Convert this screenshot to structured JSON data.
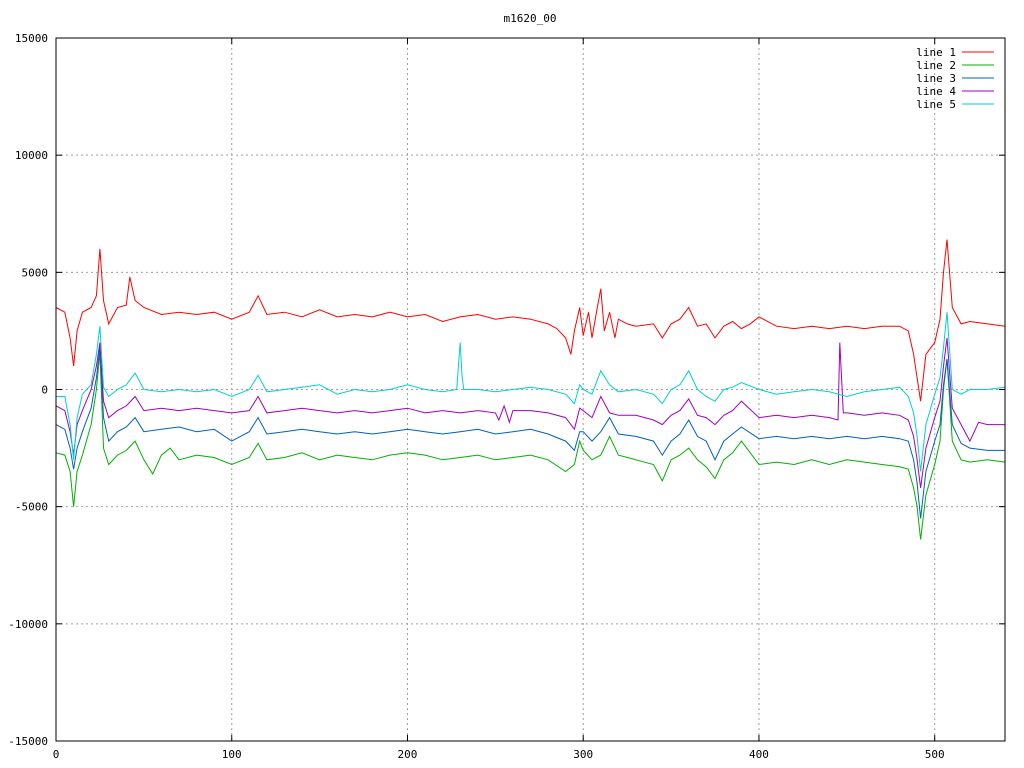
{
  "chart_data": {
    "type": "line",
    "title": "m1620_00",
    "xlabel": "",
    "ylabel": "",
    "xlim": [
      0,
      540
    ],
    "ylim": [
      -15000,
      15000
    ],
    "xticks": [
      0,
      100,
      200,
      300,
      400,
      500
    ],
    "yticks": [
      -15000,
      -10000,
      -5000,
      0,
      5000,
      10000,
      15000
    ],
    "grid": true,
    "legend_position": "top-right",
    "series": [
      {
        "name": "line 1",
        "color": "#ff0000",
        "x": [
          0,
          5,
          8,
          10,
          12,
          15,
          20,
          23,
          25,
          27,
          30,
          35,
          40,
          42,
          45,
          50,
          60,
          70,
          80,
          90,
          100,
          110,
          115,
          120,
          130,
          140,
          150,
          160,
          170,
          180,
          190,
          200,
          210,
          220,
          230,
          240,
          250,
          260,
          270,
          280,
          285,
          290,
          293,
          295,
          298,
          300,
          303,
          305,
          308,
          310,
          312,
          315,
          318,
          320,
          325,
          330,
          340,
          345,
          350,
          355,
          360,
          365,
          370,
          375,
          380,
          385,
          390,
          395,
          400,
          410,
          420,
          430,
          440,
          450,
          460,
          470,
          480,
          485,
          488,
          490,
          492,
          495,
          500,
          503,
          505,
          507,
          510,
          515,
          520,
          530,
          540
        ],
        "values": [
          3500,
          3300,
          2200,
          1000,
          2500,
          3300,
          3500,
          4000,
          6000,
          3800,
          2800,
          3500,
          3600,
          4800,
          3800,
          3500,
          3200,
          3300,
          3200,
          3300,
          3000,
          3300,
          4000,
          3200,
          3300,
          3100,
          3400,
          3100,
          3200,
          3100,
          3300,
          3100,
          3200,
          2900,
          3100,
          3200,
          3000,
          3100,
          3000,
          2800,
          2600,
          2200,
          1500,
          2500,
          3500,
          2300,
          3300,
          2200,
          3500,
          4300,
          2500,
          3300,
          2200,
          3000,
          2800,
          2700,
          2800,
          2200,
          2800,
          3000,
          3500,
          2700,
          2800,
          2200,
          2700,
          2900,
          2600,
          2800,
          3100,
          2700,
          2600,
          2700,
          2600,
          2700,
          2600,
          2700,
          2700,
          2500,
          1500,
          500,
          -500,
          1500,
          2000,
          3000,
          5000,
          6400,
          3500,
          2800,
          2900,
          2800,
          2700
        ]
      },
      {
        "name": "line 2",
        "color": "#00b000",
        "x": [
          0,
          5,
          8,
          10,
          12,
          15,
          20,
          23,
          25,
          27,
          30,
          35,
          40,
          45,
          50,
          55,
          60,
          65,
          70,
          80,
          90,
          100,
          110,
          115,
          120,
          130,
          140,
          150,
          160,
          170,
          180,
          190,
          200,
          210,
          220,
          230,
          240,
          250,
          260,
          270,
          280,
          290,
          295,
          298,
          300,
          305,
          310,
          315,
          320,
          330,
          340,
          345,
          350,
          355,
          360,
          365,
          370,
          375,
          380,
          385,
          390,
          400,
          410,
          420,
          430,
          440,
          450,
          460,
          470,
          480,
          485,
          488,
          490,
          492,
          495,
          500,
          503,
          505,
          507,
          510,
          515,
          520,
          530,
          540
        ],
        "values": [
          -2700,
          -2800,
          -3500,
          -5000,
          -3500,
          -2800,
          -1500,
          0,
          1600,
          -2500,
          -3200,
          -2800,
          -2600,
          -2200,
          -3000,
          -3600,
          -2800,
          -2500,
          -3000,
          -2800,
          -2900,
          -3200,
          -2900,
          -2300,
          -3000,
          -2900,
          -2700,
          -3000,
          -2800,
          -2900,
          -3000,
          -2800,
          -2700,
          -2800,
          -3000,
          -2900,
          -2800,
          -3000,
          -2900,
          -2800,
          -3000,
          -3500,
          -3200,
          -2200,
          -2600,
          -3000,
          -2800,
          -2000,
          -2800,
          -3000,
          -3200,
          -3900,
          -3000,
          -2800,
          -2500,
          -3000,
          -3300,
          -3800,
          -3000,
          -2700,
          -2200,
          -3200,
          -3100,
          -3200,
          -3000,
          -3200,
          -3000,
          -3100,
          -3200,
          -3300,
          -3400,
          -4200,
          -5000,
          -6400,
          -4500,
          -3200,
          -2200,
          0,
          1300,
          -2200,
          -3000,
          -3100,
          -3000,
          -3100
        ]
      },
      {
        "name": "line 3",
        "color": "#0060c0",
        "x": [
          0,
          5,
          8,
          10,
          12,
          15,
          20,
          23,
          25,
          27,
          30,
          35,
          40,
          45,
          50,
          60,
          70,
          80,
          90,
          100,
          110,
          115,
          120,
          130,
          140,
          150,
          160,
          170,
          180,
          190,
          200,
          210,
          220,
          230,
          240,
          250,
          260,
          270,
          280,
          290,
          295,
          298,
          300,
          305,
          310,
          315,
          320,
          330,
          340,
          345,
          350,
          355,
          360,
          365,
          370,
          375,
          380,
          385,
          390,
          400,
          410,
          420,
          430,
          440,
          450,
          460,
          470,
          480,
          485,
          488,
          490,
          492,
          495,
          500,
          503,
          505,
          507,
          510,
          515,
          520,
          530,
          540
        ],
        "values": [
          -1500,
          -1700,
          -2500,
          -3400,
          -2500,
          -1800,
          -800,
          500,
          1800,
          -1200,
          -2200,
          -1800,
          -1600,
          -1200,
          -1800,
          -1700,
          -1600,
          -1800,
          -1700,
          -2200,
          -1800,
          -1200,
          -1900,
          -1800,
          -1700,
          -1800,
          -1900,
          -1800,
          -1900,
          -1800,
          -1700,
          -1800,
          -1900,
          -1800,
          -1700,
          -1900,
          -1800,
          -1700,
          -1900,
          -2200,
          -2600,
          -1800,
          -1800,
          -2200,
          -1800,
          -1200,
          -1900,
          -2000,
          -2200,
          -2800,
          -2200,
          -1900,
          -1300,
          -2000,
          -2200,
          -3000,
          -2200,
          -1900,
          -1600,
          -2100,
          -2000,
          -2100,
          -2000,
          -2100,
          -2000,
          -2100,
          -2000,
          -2100,
          -2200,
          -3000,
          -4000,
          -5500,
          -3500,
          -2200,
          -1500,
          200,
          1300,
          -1500,
          -2300,
          -2500,
          -2600,
          -2600
        ]
      },
      {
        "name": "line 4",
        "color": "#a000c0",
        "x": [
          0,
          5,
          8,
          10,
          12,
          15,
          20,
          23,
          25,
          27,
          30,
          35,
          40,
          45,
          50,
          60,
          70,
          80,
          90,
          100,
          110,
          115,
          120,
          130,
          140,
          150,
          160,
          170,
          180,
          190,
          200,
          210,
          220,
          230,
          240,
          250,
          252,
          255,
          258,
          260,
          270,
          280,
          290,
          295,
          298,
          300,
          305,
          310,
          315,
          320,
          330,
          340,
          345,
          350,
          355,
          360,
          365,
          370,
          375,
          380,
          385,
          390,
          400,
          410,
          420,
          430,
          440,
          445,
          446,
          448,
          450,
          460,
          470,
          480,
          485,
          488,
          490,
          492,
          495,
          500,
          503,
          505,
          507,
          510,
          515,
          520,
          525,
          530,
          540
        ],
        "values": [
          -700,
          -900,
          -1800,
          -2800,
          -1500,
          -900,
          0,
          1000,
          2000,
          -500,
          -1200,
          -900,
          -700,
          -300,
          -900,
          -800,
          -900,
          -800,
          -900,
          -1000,
          -900,
          -300,
          -1000,
          -900,
          -800,
          -900,
          -1000,
          -900,
          -1000,
          -900,
          -800,
          -1000,
          -900,
          -1000,
          -900,
          -1000,
          -1300,
          -700,
          -1400,
          -900,
          -900,
          -1000,
          -1200,
          -1700,
          -800,
          -900,
          -1200,
          -300,
          -1000,
          -1100,
          -1100,
          -1300,
          -1500,
          -1100,
          -900,
          -400,
          -1100,
          -1200,
          -1500,
          -1100,
          -900,
          -500,
          -1200,
          -1100,
          -1200,
          -1100,
          -1200,
          -1300,
          2000,
          -1000,
          -1000,
          -1100,
          -1000,
          -1100,
          -1300,
          -2000,
          -3000,
          -4200,
          -2500,
          -1200,
          -500,
          1000,
          2200,
          -800,
          -1500,
          -2200,
          -1400,
          -1500,
          -1500
        ]
      },
      {
        "name": "line 5",
        "color": "#00d0d0",
        "x": [
          0,
          5,
          8,
          10,
          12,
          15,
          20,
          23,
          25,
          27,
          30,
          35,
          40,
          45,
          50,
          60,
          70,
          80,
          90,
          100,
          110,
          115,
          120,
          130,
          140,
          150,
          160,
          170,
          180,
          190,
          200,
          210,
          220,
          228,
          229,
          230,
          231,
          232,
          240,
          250,
          260,
          270,
          280,
          290,
          295,
          298,
          300,
          305,
          310,
          315,
          320,
          330,
          340,
          345,
          350,
          355,
          360,
          365,
          370,
          375,
          380,
          385,
          390,
          400,
          410,
          420,
          430,
          440,
          450,
          460,
          470,
          480,
          485,
          488,
          490,
          492,
          495,
          500,
          503,
          505,
          507,
          510,
          515,
          520,
          530,
          540
        ],
        "values": [
          -300,
          -300,
          -1500,
          -3000,
          -1200,
          -200,
          200,
          1500,
          2700,
          100,
          -300,
          0,
          200,
          700,
          0,
          -100,
          0,
          -100,
          0,
          -300,
          0,
          600,
          -100,
          0,
          100,
          200,
          -200,
          0,
          -100,
          0,
          200,
          0,
          -100,
          0,
          1000,
          2000,
          600,
          0,
          0,
          -100,
          0,
          100,
          0,
          -200,
          -600,
          200,
          0,
          -200,
          800,
          200,
          -100,
          0,
          -200,
          -600,
          0,
          200,
          800,
          0,
          -300,
          -500,
          0,
          100,
          300,
          0,
          -200,
          -100,
          0,
          -100,
          -300,
          -100,
          0,
          100,
          -300,
          -1000,
          -2000,
          -3500,
          -1500,
          -200,
          500,
          1800,
          3300,
          0,
          -200,
          0,
          0,
          100
        ]
      }
    ]
  }
}
